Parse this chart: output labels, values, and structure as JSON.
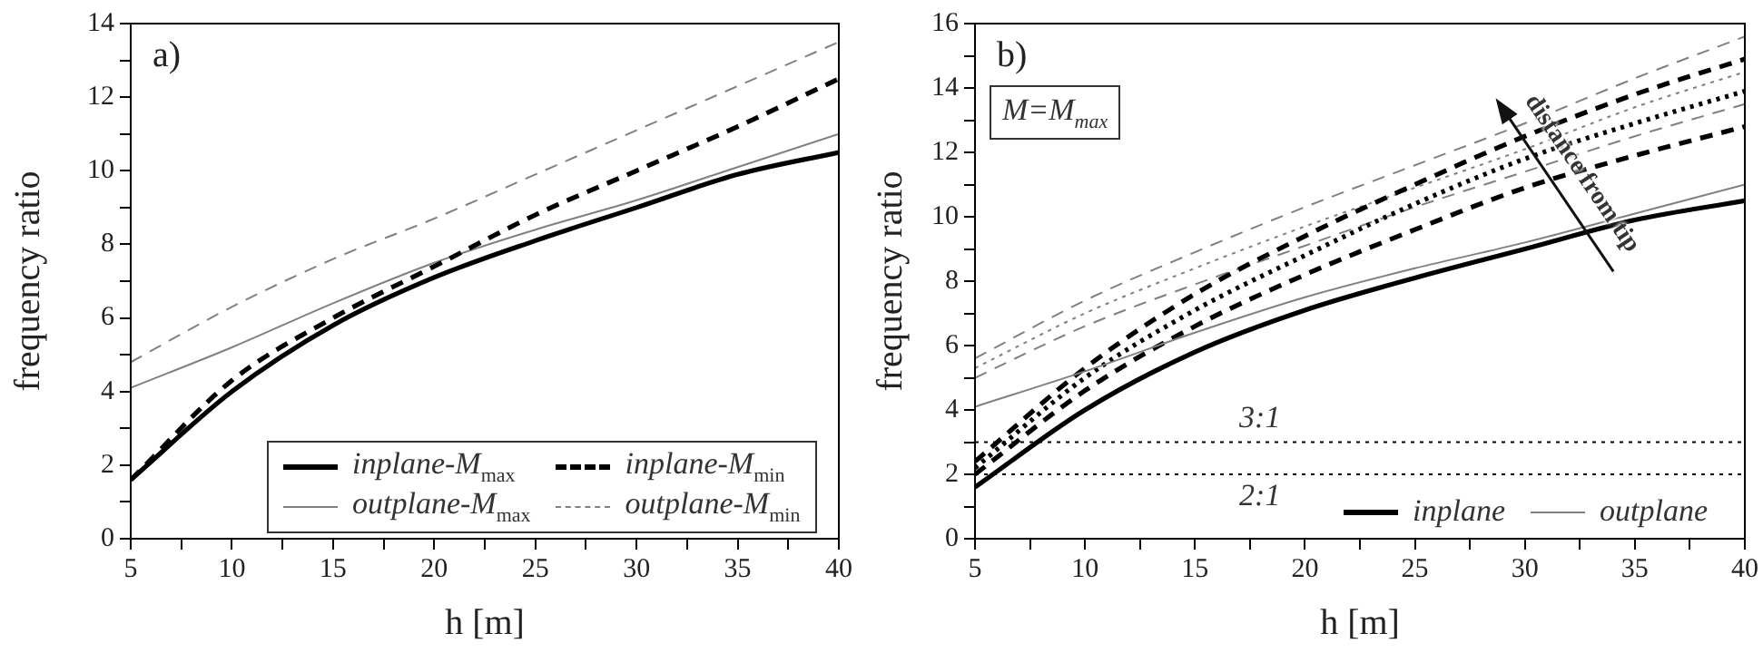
{
  "chart_data": [
    {
      "type": "line",
      "title": "a)",
      "xlabel": "h [m]",
      "ylabel": "frequency ratio",
      "x": [
        5,
        10,
        15,
        20,
        25,
        30,
        35,
        40
      ],
      "xlim": [
        5,
        40
      ],
      "ylim": [
        0,
        14
      ],
      "xticks": [
        5,
        {
          "value": 7.5,
          "label": null
        },
        10,
        {
          "value": 12.5,
          "label": null
        },
        15,
        {
          "value": 17.5,
          "label": null
        },
        20,
        {
          "value": 22.5,
          "label": null
        },
        25,
        {
          "value": 27.5,
          "label": null
        },
        30,
        {
          "value": 32.5,
          "label": null
        },
        35,
        {
          "value": 37.5,
          "label": null
        },
        40
      ],
      "yticks": [
        0,
        {
          "value": 1,
          "label": null
        },
        2,
        {
          "value": 3,
          "label": null
        },
        4,
        {
          "value": 5,
          "label": null
        },
        6,
        {
          "value": 7,
          "label": null
        },
        8,
        {
          "value": 9,
          "label": null
        },
        10,
        {
          "value": 11,
          "label": null
        },
        12,
        {
          "value": 13,
          "label": null
        },
        14
      ],
      "legend": "bottom right",
      "marker": "none",
      "series": [
        {
          "name": "inplane-M$_{max}$",
          "color": "#000000",
          "line_style": "solid",
          "values": [
            1.6,
            4.0,
            5.8,
            7.1,
            8.1,
            9.0,
            9.9,
            10.5
          ]
        },
        {
          "name": "inplane-M$_{min}$",
          "color": "#000000",
          "line_style": "dashed",
          "values": [
            1.6,
            4.3,
            6.0,
            7.4,
            8.8,
            10.0,
            11.2,
            12.5
          ]
        },
        {
          "name": "outplane-M$_{max}$",
          "color": "#808080",
          "line_style": "solid",
          "values": [
            4.1,
            5.2,
            6.4,
            7.5,
            8.4,
            9.2,
            10.1,
            11.0
          ]
        },
        {
          "name": "outplane-M$_{min}$",
          "color": "#808080",
          "line_style": "dashed",
          "values": [
            4.8,
            6.3,
            7.6,
            8.7,
            9.9,
            11.1,
            12.3,
            13.5
          ]
        }
      ]
    },
    {
      "type": "line",
      "title": "b)",
      "xlabel": "h [m]",
      "ylabel": "frequency ratio",
      "x": [
        5,
        10,
        15,
        20,
        25,
        30,
        35,
        40
      ],
      "xlim": [
        5,
        40
      ],
      "ylim": [
        0,
        16
      ],
      "xticks": [
        5,
        {
          "value": 7.5,
          "label": null
        },
        10,
        {
          "value": 12.5,
          "label": null
        },
        15,
        {
          "value": 17.5,
          "label": null
        },
        20,
        {
          "value": 22.5,
          "label": null
        },
        25,
        {
          "value": 27.5,
          "label": null
        },
        30,
        {
          "value": 32.5,
          "label": null
        },
        35,
        {
          "value": 37.5,
          "label": null
        },
        40
      ],
      "yticks": [
        0,
        {
          "value": 1,
          "label": null
        },
        2,
        {
          "value": 3,
          "label": null
        },
        4,
        {
          "value": 5,
          "label": null
        },
        6,
        {
          "value": 7,
          "label": null
        },
        8,
        {
          "value": 9,
          "label": null
        },
        10,
        {
          "value": 11,
          "label": null
        },
        12,
        {
          "value": 13,
          "label": null
        },
        14,
        {
          "value": 15,
          "label": null
        },
        16
      ],
      "legend": "bottom right",
      "marker": "none",
      "annotations": [
        "M=M$_{max}$",
        "distance from tip"
      ],
      "ref_lines": [
        {
          "axis": "y",
          "value": 3,
          "label": "3:1",
          "color": "#000000",
          "line_style": "dotted"
        },
        {
          "axis": "y",
          "value": 2,
          "label": "2:1",
          "color": "#000000",
          "line_style": "dotted"
        }
      ],
      "series": [
        {
          "name": "inplane",
          "color": "#000000",
          "line_style": "solid",
          "values": [
            1.6,
            4.0,
            5.8,
            7.1,
            8.1,
            9.0,
            9.9,
            10.5
          ]
        },
        {
          "name": "outplane",
          "color": "#808080",
          "line_style": "solid",
          "values": [
            4.1,
            5.2,
            6.4,
            7.5,
            8.4,
            9.2,
            10.1,
            11.0
          ]
        },
        {
          "color": "#000000",
          "line_style": "dashed",
          "values": [
            2.0,
            4.6,
            6.6,
            8.2,
            9.6,
            10.9,
            11.9,
            12.8
          ]
        },
        {
          "color": "#000000",
          "line_style": "dotted",
          "values": [
            2.2,
            5.0,
            7.1,
            8.8,
            10.4,
            11.8,
            12.9,
            13.9
          ]
        },
        {
          "color": "#000000",
          "line_style": "dashed",
          "values": [
            2.4,
            5.3,
            7.6,
            9.4,
            11.0,
            12.5,
            13.8,
            14.9
          ]
        },
        {
          "color": "#808080",
          "line_style": "dashed",
          "values": [
            5.0,
            6.6,
            7.9,
            9.1,
            10.3,
            11.4,
            12.5,
            13.5
          ]
        },
        {
          "color": "#808080",
          "line_style": "dotted",
          "values": [
            5.3,
            7.0,
            8.4,
            9.7,
            10.9,
            12.1,
            13.4,
            14.5
          ]
        },
        {
          "color": "#808080",
          "line_style": "dashed",
          "values": [
            5.6,
            7.4,
            8.9,
            10.3,
            11.6,
            12.9,
            14.3,
            15.6
          ]
        }
      ]
    }
  ]
}
